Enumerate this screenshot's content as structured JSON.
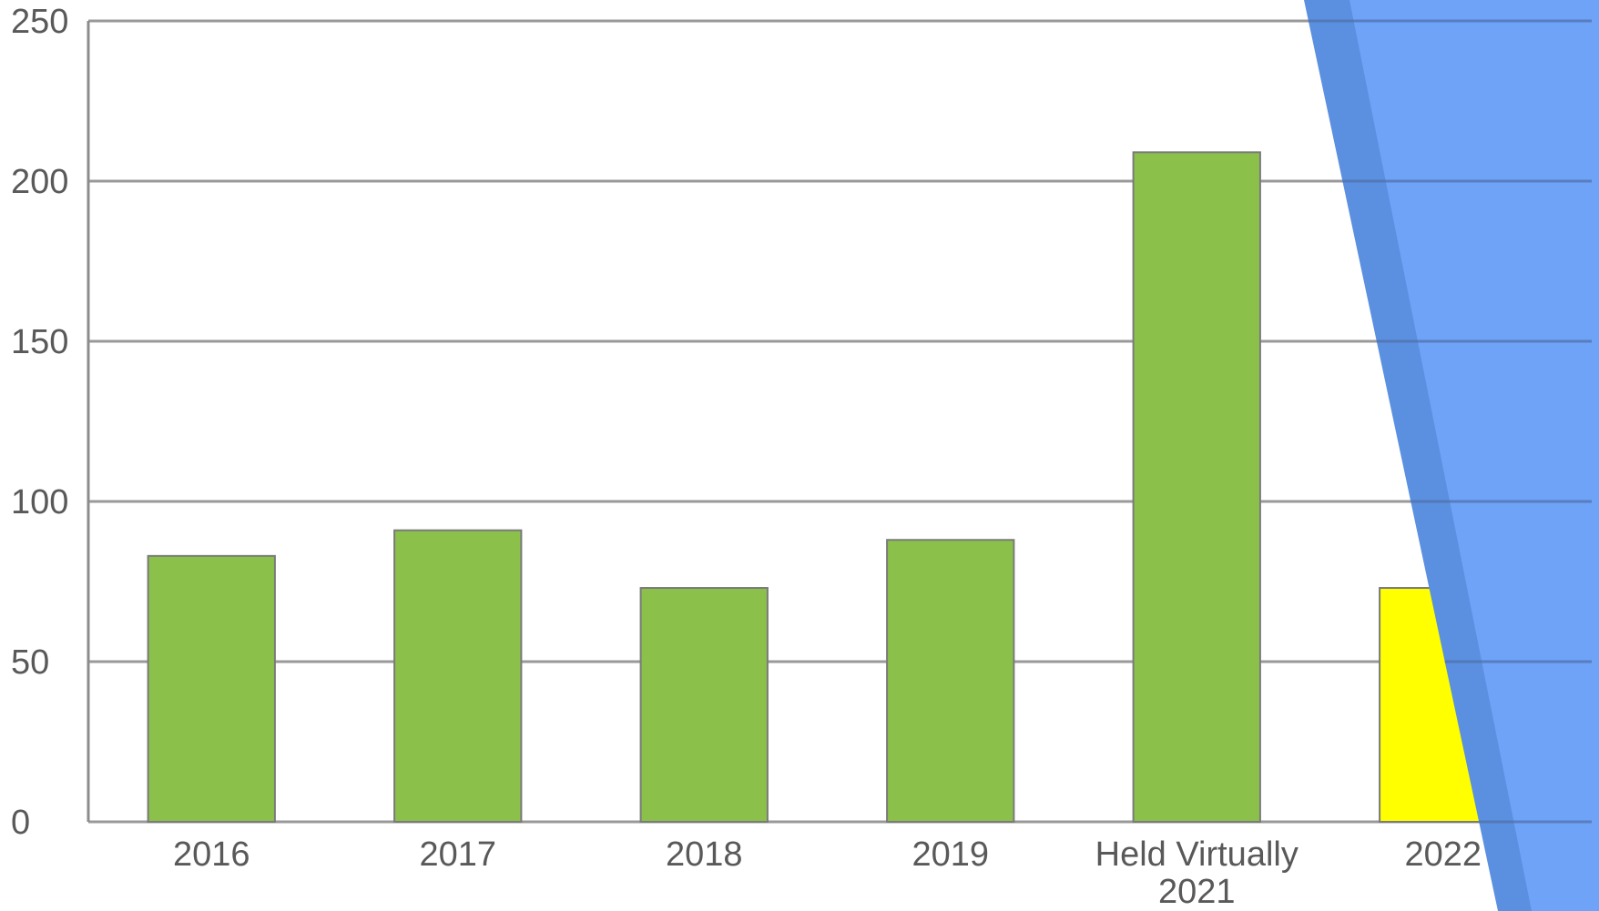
{
  "chart_data": {
    "type": "bar",
    "categories": [
      "2016",
      "2017",
      "2018",
      "2019",
      "Held Virtually 2021",
      "2022"
    ],
    "category_lines": [
      [
        "2016"
      ],
      [
        "2017"
      ],
      [
        "2018"
      ],
      [
        "2019"
      ],
      [
        "Held Virtually",
        "2021"
      ],
      [
        "2022"
      ]
    ],
    "values": [
      83,
      91,
      73,
      88,
      209,
      73
    ],
    "bar_colors": [
      "#8bc14a",
      "#8bc14a",
      "#8bc14a",
      "#8bc14a",
      "#8bc14a",
      "#ffff00"
    ],
    "ylim": [
      0,
      250
    ],
    "yticks": [
      0,
      50,
      100,
      150,
      200,
      250
    ],
    "grid": true,
    "title": "",
    "xlabel": "",
    "ylabel": "",
    "legend": "none"
  },
  "colors": {
    "bar": "#8bc14a",
    "highlight_bar": "#ffff00",
    "bar_border": "#7a7a7a",
    "gridline": "#999999",
    "overlay": "#6ea3f7",
    "overlay_dark": "#5b8fe0"
  }
}
